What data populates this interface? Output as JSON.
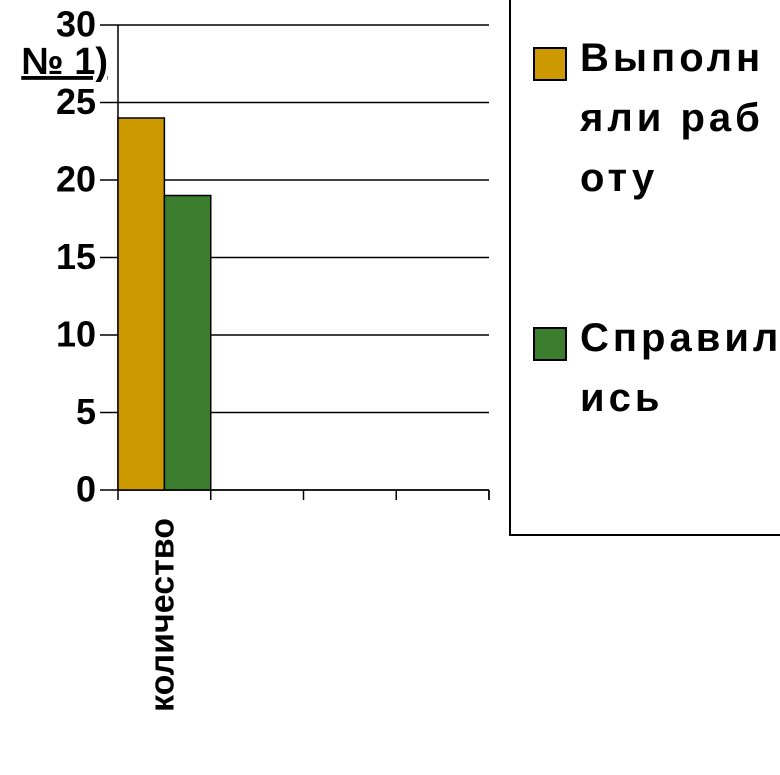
{
  "chart_data": {
    "type": "bar",
    "title": "№ 1)",
    "categories": [
      "количество",
      null,
      null,
      null
    ],
    "series": [
      {
        "name": "Выполняли работу",
        "color": "#cc9900",
        "values": [
          24,
          null,
          null,
          null
        ]
      },
      {
        "name": "Справились",
        "color": "#3a7d2e",
        "values": [
          19,
          null,
          null,
          null
        ]
      }
    ],
    "ylim": [
      0,
      30
    ],
    "yticks": [
      0,
      5,
      10,
      15,
      20,
      25,
      30
    ],
    "grid": true,
    "legend": "right"
  }
}
